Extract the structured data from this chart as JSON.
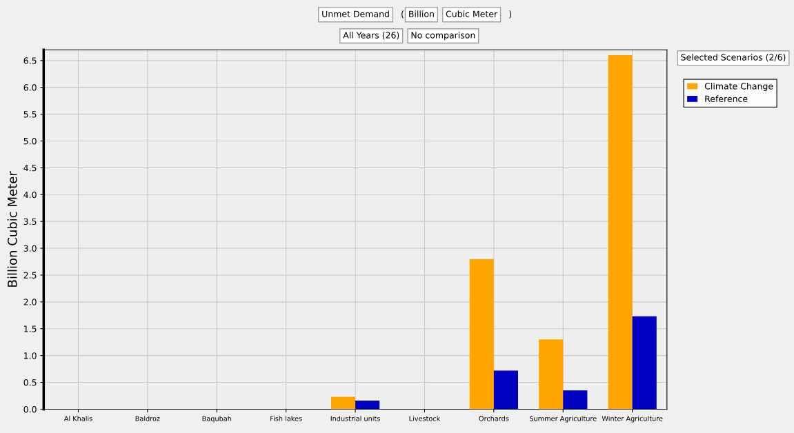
{
  "chart_data": {
    "type": "bar",
    "ylabel": "Billion Cubic Meter",
    "annotations": [
      "Unmet Demand",
      "(",
      "Billion",
      "Cubic Meter",
      ")",
      "All Years (26)",
      "No comparison",
      "Selected Scenarios (2/6)"
    ],
    "categories": [
      "Al Khalis",
      "Baldroz",
      "Baqubah",
      "Fish lakes",
      "Industrial units",
      "Livestock",
      "Orchards",
      "Summer Agriculture",
      "Winter Agriculture"
    ],
    "series": [
      {
        "name": "Climate Change",
        "color": "#ffa500",
        "values": [
          0,
          0,
          0,
          0,
          0.23,
          0,
          2.8,
          1.3,
          6.6
        ]
      },
      {
        "name": "Reference",
        "color": "#0000c0",
        "values": [
          0,
          0,
          0,
          0,
          0.16,
          0,
          0.72,
          0.35,
          1.73
        ]
      }
    ],
    "ylim": [
      0,
      6.7
    ],
    "yticks": [
      {
        "value": 0,
        "label": "0.0"
      },
      {
        "value": 0.5,
        "label": "0.5"
      },
      {
        "value": 1,
        "label": "1.0"
      },
      {
        "value": 1.5,
        "label": "1.5"
      },
      {
        "value": 2,
        "label": "2.0"
      },
      {
        "value": 2.5,
        "label": "2.5"
      },
      {
        "value": 3,
        "label": "3.0"
      },
      {
        "value": 3.5,
        "label": "3.5"
      },
      {
        "value": 4,
        "label": "4.0"
      },
      {
        "value": 4.5,
        "label": "4.5"
      },
      {
        "value": 5,
        "label": "5.0"
      },
      {
        "value": 5.5,
        "label": "5.5"
      },
      {
        "value": 6,
        "label": "6.0"
      },
      {
        "value": 6.5,
        "label": "6.5"
      }
    ],
    "grid": true,
    "legend": "top right"
  }
}
